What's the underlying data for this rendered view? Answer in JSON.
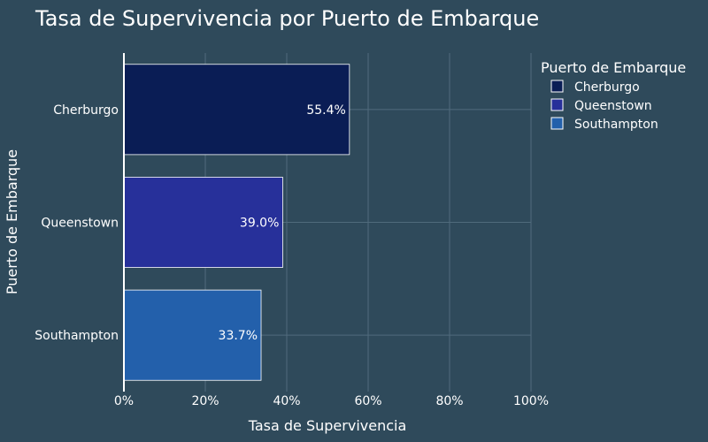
{
  "chart_data": {
    "type": "bar",
    "orientation": "horizontal",
    "title": "Tasa de Supervivencia por Puerto de Embarque",
    "xlabel": "Tasa de Supervivencia",
    "ylabel": "Puerto de Embarque",
    "categories": [
      "Cherburgo",
      "Queenstown",
      "Southampton"
    ],
    "values": [
      55.4,
      39.0,
      33.7
    ],
    "data_labels": [
      "55.4%",
      "39.0%",
      "33.7%"
    ],
    "colors": [
      "#0a1d55",
      "#27309a",
      "#2360ab"
    ],
    "xlim": [
      0,
      100
    ],
    "x_ticks": [
      0,
      20,
      40,
      60,
      80,
      100
    ],
    "x_tick_labels": [
      "0%",
      "20%",
      "40%",
      "60%",
      "80%",
      "100%"
    ],
    "grid": true,
    "legend": {
      "title": "Puerto de Embarque",
      "placement": "top-right",
      "entries": [
        "Cherburgo",
        "Queenstown",
        "Southampton"
      ]
    },
    "background": "#2f4a5b"
  }
}
